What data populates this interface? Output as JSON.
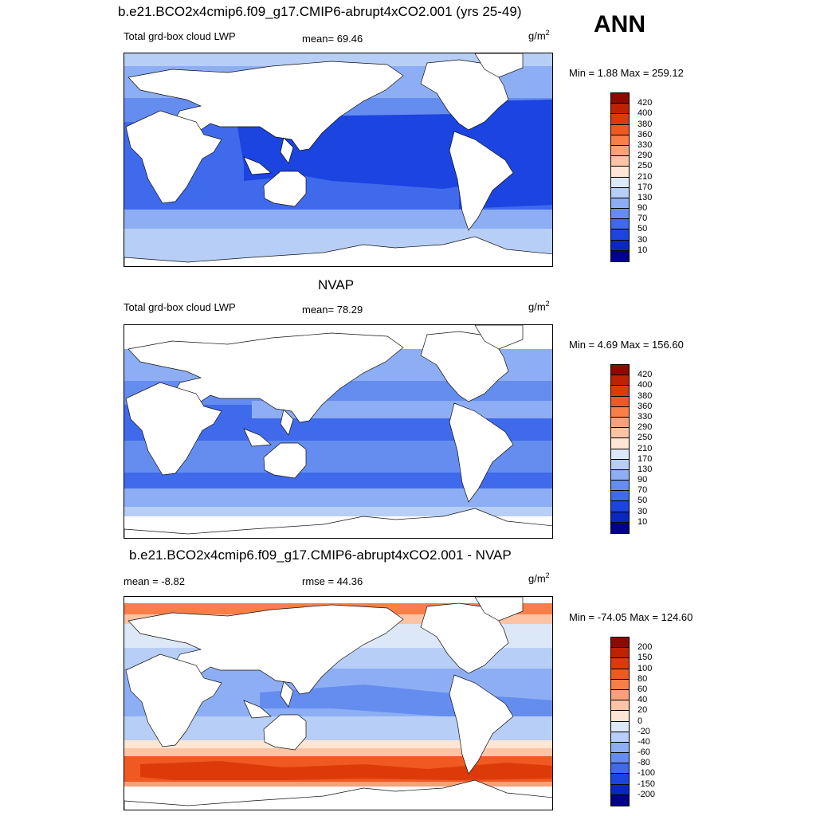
{
  "panel1": {
    "title": "b.e21.BCO2x4cmip6.f09_g17.CMIP6-abrupt4xCO2.001 (yrs 25-49)",
    "season": "ANN",
    "variable": "Total grd-box cloud LWP",
    "mean": "mean=  69.46",
    "unit_base": "g/m",
    "unit_exp": "2",
    "minmax": "Min =   1.88 Max = 259.12"
  },
  "panel2": {
    "title": "NVAP",
    "variable": "Total grd-box cloud LWP",
    "mean": "mean=  78.29",
    "unit_base": "g/m",
    "unit_exp": "2",
    "minmax": "Min =   4.69 Max = 156.60"
  },
  "panel3": {
    "title": "b.e21.BCO2x4cmip6.f09_g17.CMIP6-abrupt4xCO2.001 - NVAP",
    "mean": "mean =  -8.82",
    "rmse": "rmse =  44.36",
    "unit_base": "g/m",
    "unit_exp": "2",
    "minmax": "Min = -74.05 Max = 124.60"
  },
  "colorbar_abs": {
    "labels": [
      "420",
      "400",
      "380",
      "360",
      "330",
      "290",
      "250",
      "210",
      "170",
      "130",
      "90",
      "70",
      "50",
      "30",
      "10"
    ],
    "colors": [
      "#8c0a00",
      "#be2200",
      "#dd3a0a",
      "#f05a22",
      "#fa7e48",
      "#fca07a",
      "#fcc4a4",
      "#fde6d4",
      "#dce8f8",
      "#b7cef6",
      "#8daef4",
      "#658df0",
      "#3f6aeb",
      "#1b44e0",
      "#0a28c0",
      "#00008c"
    ]
  },
  "colorbar_diff": {
    "labels": [
      "200",
      "150",
      "100",
      "80",
      "60",
      "40",
      "20",
      "0",
      "-20",
      "-40",
      "-60",
      "-80",
      "-100",
      "-150",
      "-200"
    ],
    "colors": [
      "#8c0a00",
      "#be2200",
      "#dd3a0a",
      "#f05a22",
      "#fa7e48",
      "#fca07a",
      "#fcc4a4",
      "#fde6d4",
      "#dce8f8",
      "#b7cef6",
      "#8daef4",
      "#658df0",
      "#3f6aeb",
      "#1b44e0",
      "#0a28c0",
      "#00008c"
    ]
  }
}
